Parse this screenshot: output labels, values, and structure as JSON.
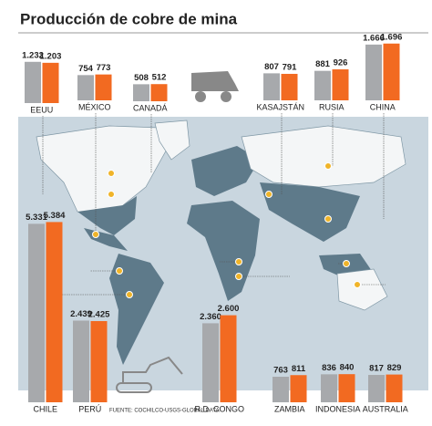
{
  "title": "Producción de cobre de mina",
  "source": "FUENTE: COCHILCO-USGS-GLOBAL DATA",
  "chart_data": {
    "type": "bar",
    "categories": [
      "EEUU",
      "MÉXICO",
      "CANADÁ",
      "KASAJSTÁN",
      "RUSIA",
      "CHINA",
      "CHILE",
      "PERÚ",
      "R.D. CONGO",
      "ZAMBIA",
      "INDONESIA",
      "AUSTRALIA"
    ],
    "series": [
      {
        "color": "#a7a9ac",
        "values": [
          1232,
          754,
          508,
          807,
          881,
          1666,
          5331,
          2439,
          2360,
          763,
          836,
          817
        ],
        "value_labels": [
          "1.232",
          "754",
          "508",
          "807",
          "881",
          "1.666",
          "5.331",
          "2.439",
          "2.360",
          "763",
          "836",
          "817"
        ]
      },
      {
        "color": "#f26a21",
        "values": [
          1203,
          773,
          512,
          791,
          926,
          1696,
          5384,
          2425,
          2600,
          811,
          840,
          829
        ],
        "value_labels": [
          "1.203",
          "773",
          "512",
          "791",
          "926",
          "1.696",
          "5.384",
          "2.425",
          "2.600",
          "811",
          "840",
          "829"
        ]
      }
    ]
  }
}
